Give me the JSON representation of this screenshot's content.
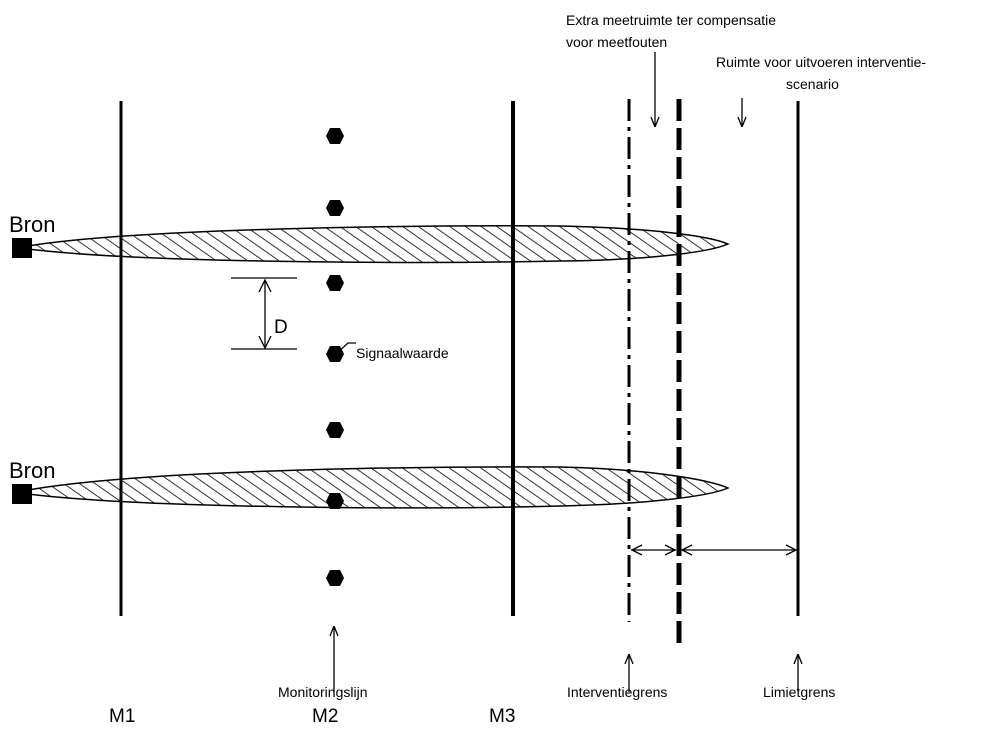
{
  "labels": {
    "source_top": "Bron",
    "source_bottom": "Bron",
    "distance": "D",
    "signal_value": "Signaalwaarde",
    "extra_space_line1": "Extra meetruimte ter compensatie",
    "extra_space_line2": "voor meetfouten",
    "intervention_space_line1": "Ruimte voor uitvoeren interventie-",
    "intervention_space_line2": "scenario",
    "monitoring_line": "Monitoringslijn",
    "intervention_limit": "Interventiegrens",
    "limit": "Limietgrens",
    "m1": "M1",
    "m2": "M2",
    "m3": "M3"
  }
}
